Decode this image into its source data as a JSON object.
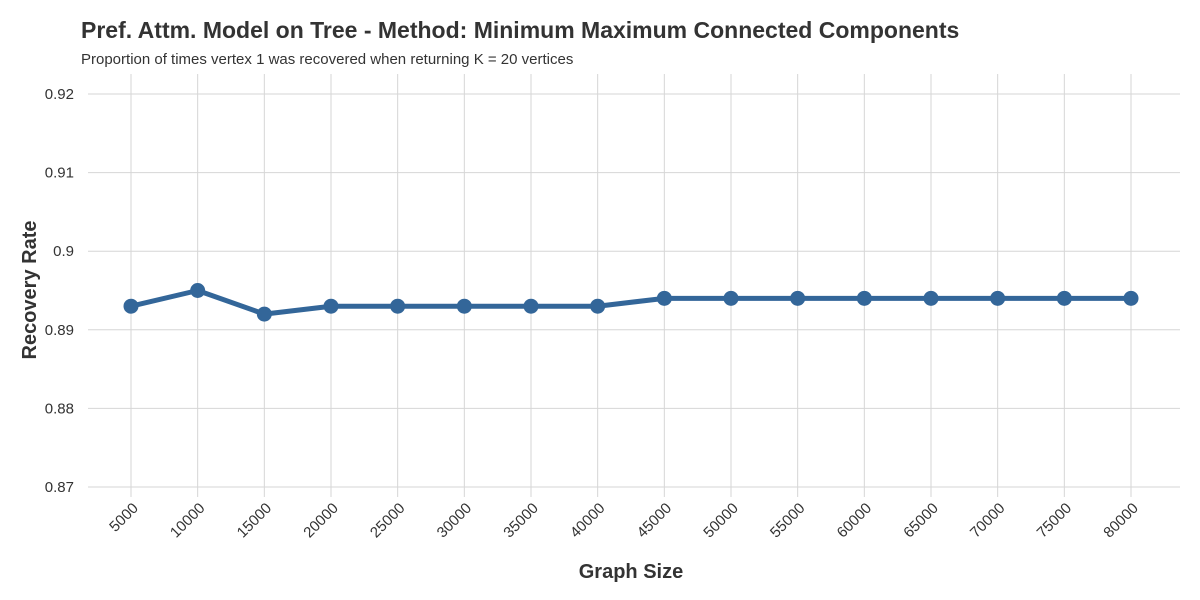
{
  "chart_data": {
    "type": "line",
    "title": "Pref. Attm. Model on Tree - Method: Minimum Maximum Connected Components",
    "subtitle": "Proportion of times vertex 1 was recovered when returning K = 20 vertices",
    "xlabel": "Graph Size",
    "ylabel": "Recovery Rate",
    "categories": [
      "5000",
      "10000",
      "15000",
      "20000",
      "25000",
      "30000",
      "35000",
      "40000",
      "45000",
      "50000",
      "55000",
      "60000",
      "65000",
      "70000",
      "75000",
      "80000"
    ],
    "series": [
      {
        "values": [
          0.893,
          0.895,
          0.892,
          0.893,
          0.893,
          0.893,
          0.893,
          0.893,
          0.894,
          0.894,
          0.894,
          0.894,
          0.894,
          0.894,
          0.894,
          0.894
        ]
      }
    ],
    "yticks": [
      "0.87",
      "0.88",
      "0.89",
      "0.9",
      "0.91",
      "0.92"
    ],
    "ylim": [
      0.8675,
      0.9225
    ],
    "grid": true,
    "legend": "none",
    "colors": {
      "line": "#336699",
      "grid": "#d6d6d6",
      "text": "#333333"
    }
  }
}
